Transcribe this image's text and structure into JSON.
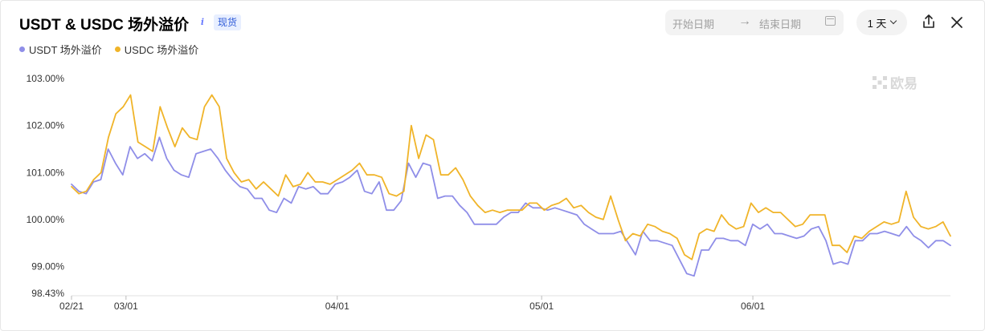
{
  "header": {
    "title": "USDT & USDC 场外溢价",
    "info_icon": "i",
    "badge": "现货"
  },
  "controls": {
    "start_date_placeholder": "开始日期",
    "end_date_placeholder": "结束日期",
    "interval": "1 天",
    "icons": [
      "arrow-right-icon",
      "calendar-icon",
      "chevron-down-icon",
      "share-icon",
      "close-icon"
    ]
  },
  "watermark": "欧易",
  "colors": {
    "usdt": "#8f8ee8",
    "usdc": "#f0b429",
    "text": "#111111",
    "badge_bg": "#e8efff"
  },
  "chart_data": {
    "type": "line",
    "title": "",
    "xlabel": "",
    "ylabel": "",
    "x_ticks": [
      "02/21",
      "03/01",
      "04/01",
      "05/01",
      "06/01"
    ],
    "y_ticks": [
      "103.00%",
      "102.00%",
      "101.00%",
      "100.00%",
      "99.00%",
      "98.43%"
    ],
    "ylim": [
      98.43,
      103.0
    ],
    "x_domain": [
      "02/21",
      "06/30"
    ],
    "legend": "top-left",
    "grid": false,
    "series": [
      {
        "name": "USDT 场外溢价",
        "color": "#8f8ee8",
        "values": [
          100.75,
          100.6,
          100.55,
          100.8,
          100.85,
          101.5,
          101.2,
          100.95,
          101.55,
          101.3,
          101.4,
          101.25,
          101.75,
          101.3,
          101.05,
          100.95,
          100.9,
          101.4,
          101.45,
          101.5,
          101.3,
          101.05,
          100.85,
          100.7,
          100.65,
          100.45,
          100.45,
          100.2,
          100.15,
          100.45,
          100.35,
          100.7,
          100.65,
          100.7,
          100.55,
          100.55,
          100.75,
          100.8,
          100.9,
          101.05,
          100.6,
          100.55,
          100.8,
          100.2,
          100.2,
          100.4,
          101.2,
          100.9,
          101.2,
          101.15,
          100.45,
          100.5,
          100.5,
          100.3,
          100.15,
          99.9,
          99.9,
          99.9,
          99.9,
          100.05,
          100.15,
          100.15,
          100.35,
          100.25,
          100.25,
          100.2,
          100.25,
          100.2,
          100.15,
          100.1,
          99.9,
          99.8,
          99.7,
          99.7,
          99.7,
          99.75,
          99.5,
          99.25,
          99.75,
          99.55,
          99.55,
          99.5,
          99.45,
          99.15,
          98.85,
          98.8,
          99.35,
          99.35,
          99.6,
          99.6,
          99.55,
          99.55,
          99.45,
          99.9,
          99.8,
          99.9,
          99.7,
          99.7,
          99.65,
          99.6,
          99.65,
          99.8,
          99.85,
          99.55,
          99.05,
          99.1,
          99.05,
          99.55,
          99.55,
          99.7,
          99.7,
          99.75,
          99.7,
          99.65,
          99.85,
          99.65,
          99.55,
          99.4,
          99.55,
          99.55,
          99.45
        ]
      },
      {
        "name": "USDC 场外溢价",
        "color": "#f0b429",
        "values": [
          100.7,
          100.55,
          100.6,
          100.85,
          101.0,
          101.75,
          102.25,
          102.4,
          102.65,
          101.65,
          101.55,
          101.45,
          102.4,
          101.95,
          101.55,
          101.95,
          101.75,
          101.7,
          102.4,
          102.65,
          102.4,
          101.3,
          101.0,
          100.8,
          100.85,
          100.65,
          100.8,
          100.65,
          100.5,
          100.95,
          100.7,
          100.75,
          101.0,
          100.8,
          100.8,
          100.75,
          100.85,
          100.95,
          101.05,
          101.2,
          100.95,
          100.95,
          100.9,
          100.55,
          100.5,
          100.6,
          102.0,
          101.3,
          101.8,
          101.7,
          100.95,
          100.95,
          101.1,
          100.85,
          100.5,
          100.3,
          100.15,
          100.2,
          100.15,
          100.2,
          100.2,
          100.2,
          100.35,
          100.35,
          100.2,
          100.3,
          100.35,
          100.45,
          100.25,
          100.3,
          100.15,
          100.05,
          100.0,
          100.5,
          100.0,
          99.55,
          99.7,
          99.65,
          99.9,
          99.85,
          99.75,
          99.7,
          99.6,
          99.25,
          99.15,
          99.7,
          99.8,
          99.75,
          100.1,
          99.9,
          99.8,
          99.85,
          100.35,
          100.15,
          100.25,
          100.15,
          100.15,
          100.0,
          99.85,
          99.9,
          100.1,
          100.1,
          100.1,
          99.45,
          99.45,
          99.3,
          99.65,
          99.6,
          99.75,
          99.85,
          99.95,
          99.9,
          99.95,
          100.6,
          100.05,
          99.85,
          99.8,
          99.85,
          99.95,
          99.65
        ]
      }
    ]
  }
}
